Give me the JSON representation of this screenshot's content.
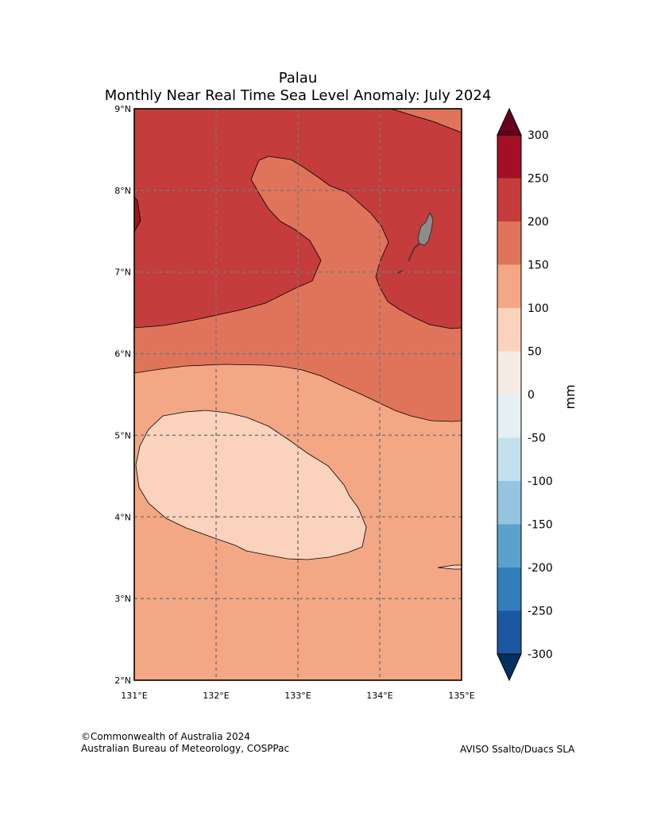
{
  "title": {
    "line1": "Palau",
    "line2": "Monthly Near Real Time Sea Level Anomaly: July 2024"
  },
  "axes": {
    "lat_labels": [
      "9°N",
      "8°N",
      "7°N",
      "6°N",
      "5°N",
      "4°N",
      "3°N",
      "2°N"
    ],
    "lon_labels": [
      "131°E",
      "132°E",
      "133°E",
      "134°E",
      "135°E"
    ],
    "lat_range": [
      2,
      9
    ],
    "lon_range": [
      131,
      135
    ],
    "grid": true
  },
  "colorbar": {
    "unit_label": "mm",
    "tick_labels": [
      "300",
      "250",
      "200",
      "150",
      "100",
      "50",
      "0",
      "-50",
      "-100",
      "-150",
      "-200",
      "-250",
      "-300"
    ],
    "colors": [
      "#67001f",
      "#a50f25",
      "#c43c3b",
      "#e0745a",
      "#f4a784",
      "#fbd3bd",
      "#f6eae4",
      "#e6eff4",
      "#c5e0ed",
      "#94c4df",
      "#5aa2cc",
      "#327ebb",
      "#1a57a0",
      "#053061"
    ]
  },
  "chart_data": {
    "type": "heatmap",
    "title": "Monthly Near Real Time Sea Level Anomaly: July 2024",
    "region": "Palau",
    "units": "mm",
    "levels": [
      -300,
      -250,
      -200,
      -150,
      -100,
      -50,
      0,
      50,
      100,
      150,
      200,
      250,
      300
    ],
    "observed_bands": [
      {
        "range": [
          200,
          250
        ],
        "area": "north-west and north-east"
      },
      {
        "range": [
          150,
          200
        ],
        "area": "central band and northern tongue"
      },
      {
        "range": [
          100,
          150
        ],
        "area": "southern half"
      },
      {
        "range": [
          50,
          100
        ],
        "area": "pool near 131.1-133.8°E, 3.5-5.3°N"
      },
      {
        "range": [
          250,
          300
        ],
        "area": "small patch at western edge near 7.7°N"
      }
    ]
  },
  "credits": {
    "left_line1": "©Commonwealth of Australia 2024",
    "left_line2": "Australian Bureau of Meteorology, COSPPac",
    "right": "AVISO Ssalto/Duacs SLA"
  }
}
